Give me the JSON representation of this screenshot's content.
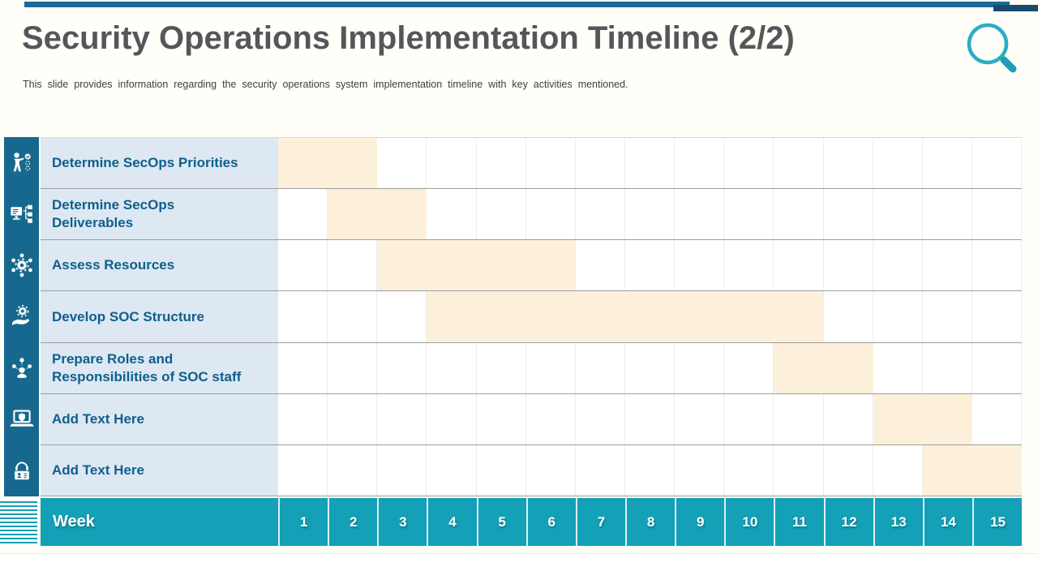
{
  "slide": {
    "title": "Security Operations Implementation Timeline (2/2)",
    "subtitle": "This slide provides information regarding the security operations system implementation timeline with key activities mentioned."
  },
  "colors": {
    "top_bar": "#1a6b93",
    "top_bar_accent": "#184a6e",
    "icon_strip": "#17688f",
    "label_bg": "#dde8f2",
    "label_text": "#0f5f8c",
    "bar_fill": "#fdf0da",
    "week_row_bg": "#14a0b6",
    "magnifier": "#2aadc4",
    "stripes": "#1a9db3",
    "title_text": "#55565a",
    "subtitle_text": "#3d3d3d"
  },
  "chart_data": {
    "type": "gantt",
    "title": "Security Operations Implementation Timeline (2/2)",
    "week_label": "Week",
    "weeks": [
      "1",
      "2",
      "3",
      "4",
      "5",
      "6",
      "7",
      "8",
      "9",
      "10",
      "11",
      "12",
      "13",
      "14",
      "15"
    ],
    "x_range": [
      1,
      15
    ],
    "grid": true,
    "tasks": [
      {
        "label": "Determine SecOps Priorities",
        "icon": "presenter-checklist-icon",
        "start_week": 1,
        "end_week": 2
      },
      {
        "label": "Determine SecOps Deliverables",
        "icon": "monitor-flowchart-icon",
        "start_week": 2,
        "end_week": 3
      },
      {
        "label": "Assess Resources",
        "icon": "gear-network-icon",
        "start_week": 3,
        "end_week": 6
      },
      {
        "label": "Develop SOC Structure",
        "icon": "hand-gear-icon",
        "start_week": 4,
        "end_week": 11
      },
      {
        "label": "Prepare Roles and Responsibilities of SOC staff",
        "icon": "team-network-icon",
        "start_week": 11,
        "end_week": 12
      },
      {
        "label": "Add Text Here",
        "icon": "laptop-shield-icon",
        "start_week": 13,
        "end_week": 14
      },
      {
        "label": "Add Text Here",
        "icon": "operator-badge-icon",
        "start_week": 14,
        "end_week": 15
      }
    ]
  }
}
